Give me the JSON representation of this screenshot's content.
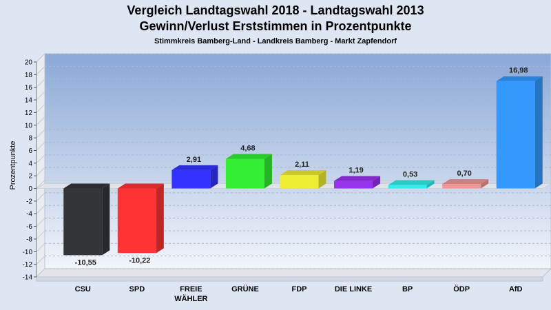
{
  "chart_data": {
    "type": "bar",
    "title": "Vergleich Landtagswahl 2018 - Landtagswahl 2013",
    "subtitle": "Gewinn/Verlust Erststimmen in Prozentpunkte",
    "subsubtitle": "Stimmkreis Bamberg-Land - Landkreis Bamberg - Markt Zapfendorf",
    "ylabel": "Prozentpunkte",
    "xlabel": "",
    "ylim": [
      -14,
      20
    ],
    "yticks": [
      -14,
      -12,
      -10,
      -8,
      -6,
      -4,
      -2,
      0,
      2,
      4,
      6,
      8,
      10,
      12,
      14,
      16,
      18,
      20
    ],
    "grid": true,
    "categories": [
      "CSU",
      "SPD",
      "FREIE WÄHLER",
      "GRÜNE",
      "FDP",
      "DIE LINKE",
      "BP",
      "ÖDP",
      "AfD"
    ],
    "category_lines": [
      [
        "CSU"
      ],
      [
        "SPD"
      ],
      [
        "FREIE",
        "WÄHLER"
      ],
      [
        "GRÜNE"
      ],
      [
        "FDP"
      ],
      [
        "DIE LINKE"
      ],
      [
        "BP"
      ],
      [
        "ÖDP"
      ],
      [
        "AfD"
      ]
    ],
    "values": [
      -10.55,
      -10.22,
      2.91,
      4.68,
      2.11,
      1.19,
      0.53,
      0.7,
      16.98
    ],
    "labels": [
      "-10,55",
      "-10,22",
      "2,91",
      "4,68",
      "2,11",
      "1,19",
      "0,53",
      "0,70",
      "16,98"
    ],
    "colors": [
      "#333539",
      "#ff3333",
      "#3333ff",
      "#33ee33",
      "#eeee33",
      "#9933ee",
      "#33eeee",
      "#f29696",
      "#3399ff"
    ]
  }
}
